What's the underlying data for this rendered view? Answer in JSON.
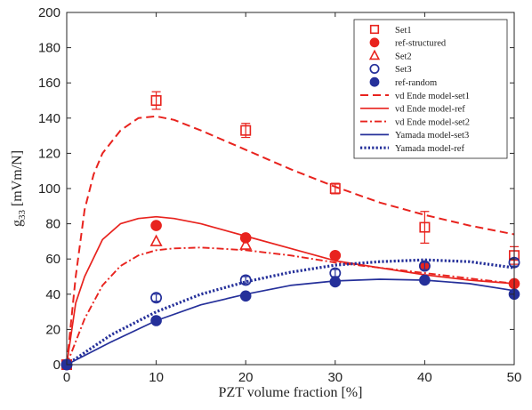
{
  "chart_data": {
    "type": "line",
    "xlabel": "PZT volume fraction [%]",
    "ylabel_main": "g",
    "ylabel_sub": "33",
    "ylabel_unit": " [mVm/N]",
    "xlim": [
      0,
      50
    ],
    "ylim": [
      0,
      200
    ],
    "xticks": [
      0,
      10,
      20,
      30,
      40,
      50
    ],
    "yticks": [
      0,
      20,
      40,
      60,
      80,
      100,
      120,
      140,
      160,
      180,
      200
    ],
    "grid": false,
    "legend_position": "top-right",
    "colors": {
      "red": "#e8231e",
      "blue": "#25309a"
    },
    "scatter_series": [
      {
        "name": "Set1",
        "marker": "open-square",
        "color": "red",
        "points": [
          [
            0,
            0
          ],
          [
            10,
            150
          ],
          [
            20,
            133
          ],
          [
            30,
            100
          ],
          [
            40,
            78
          ],
          [
            50,
            62
          ]
        ],
        "errors": [
          1.5,
          5,
          4,
          3,
          9,
          5
        ]
      },
      {
        "name": "ref-structured",
        "marker": "filled-circle",
        "color": "red",
        "points": [
          [
            0,
            0
          ],
          [
            10,
            79
          ],
          [
            20,
            72
          ],
          [
            30,
            62
          ],
          [
            40,
            56
          ],
          [
            50,
            46
          ]
        ],
        "errors": [
          0,
          0,
          0,
          0,
          0,
          0
        ]
      },
      {
        "name": "Set2",
        "marker": "open-triangle",
        "color": "red",
        "points": [
          [
            10,
            70
          ],
          [
            20,
            68
          ]
        ],
        "errors": [
          0,
          0
        ]
      },
      {
        "name": "Set3",
        "marker": "open-circle",
        "color": "blue",
        "points": [
          [
            0,
            0
          ],
          [
            10,
            38
          ],
          [
            20,
            48
          ],
          [
            30,
            52
          ],
          [
            40,
            56
          ],
          [
            50,
            58
          ]
        ],
        "errors": [
          2,
          2,
          2,
          2,
          2,
          2
        ]
      },
      {
        "name": "ref-random",
        "marker": "filled-circle",
        "color": "blue",
        "points": [
          [
            0,
            0
          ],
          [
            10,
            25
          ],
          [
            20,
            39
          ],
          [
            30,
            47
          ],
          [
            40,
            48
          ],
          [
            50,
            40
          ]
        ],
        "errors": [
          0,
          0,
          0,
          0,
          0,
          0
        ]
      }
    ],
    "line_series": [
      {
        "name": "vd Ende model-set1",
        "style": "dashed",
        "color": "red",
        "points": [
          [
            0,
            0
          ],
          [
            1,
            50
          ],
          [
            2,
            88
          ],
          [
            3,
            108
          ],
          [
            4,
            120
          ],
          [
            6,
            133
          ],
          [
            8,
            140
          ],
          [
            10,
            141
          ],
          [
            12,
            139
          ],
          [
            15,
            133
          ],
          [
            20,
            122
          ],
          [
            25,
            111
          ],
          [
            30,
            101
          ],
          [
            35,
            92
          ],
          [
            40,
            85
          ],
          [
            45,
            79
          ],
          [
            50,
            74
          ]
        ]
      },
      {
        "name": "vd Ende model-ref",
        "style": "solid",
        "color": "red",
        "points": [
          [
            0,
            0
          ],
          [
            1,
            35
          ],
          [
            2,
            50
          ],
          [
            4,
            71
          ],
          [
            6,
            80
          ],
          [
            8,
            83
          ],
          [
            10,
            84
          ],
          [
            12,
            83
          ],
          [
            15,
            80
          ],
          [
            20,
            73
          ],
          [
            25,
            66
          ],
          [
            30,
            59
          ],
          [
            35,
            55
          ],
          [
            40,
            51
          ],
          [
            45,
            48
          ],
          [
            50,
            46
          ]
        ]
      },
      {
        "name": "vd Ende model-set2",
        "style": "dashdot",
        "color": "red",
        "points": [
          [
            0,
            0
          ],
          [
            2,
            26
          ],
          [
            4,
            45
          ],
          [
            6,
            56
          ],
          [
            8,
            62
          ],
          [
            10,
            65
          ],
          [
            12,
            66
          ],
          [
            15,
            66.5
          ],
          [
            20,
            65
          ],
          [
            25,
            62
          ],
          [
            30,
            58
          ],
          [
            35,
            55
          ],
          [
            40,
            52
          ],
          [
            45,
            49
          ],
          [
            50,
            46
          ]
        ]
      },
      {
        "name": "Yamada model-set3",
        "style": "solid",
        "color": "blue",
        "points": [
          [
            0,
            0
          ],
          [
            5,
            13
          ],
          [
            10,
            25
          ],
          [
            15,
            34
          ],
          [
            20,
            40
          ],
          [
            25,
            45
          ],
          [
            30,
            47.5
          ],
          [
            35,
            48.5
          ],
          [
            40,
            48
          ],
          [
            45,
            46
          ],
          [
            50,
            42
          ]
        ]
      },
      {
        "name": "Yamada model-ref",
        "style": "dotted",
        "color": "blue",
        "points": [
          [
            0,
            0
          ],
          [
            5,
            17
          ],
          [
            10,
            30
          ],
          [
            15,
            40
          ],
          [
            20,
            47
          ],
          [
            25,
            52.5
          ],
          [
            30,
            56.5
          ],
          [
            35,
            58.5
          ],
          [
            40,
            59.5
          ],
          [
            45,
            58.5
          ],
          [
            50,
            55
          ]
        ]
      }
    ]
  }
}
